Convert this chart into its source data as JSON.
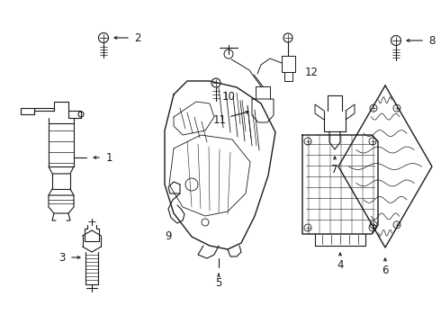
{
  "background_color": "#ffffff",
  "line_color": "#1a1a1a",
  "fig_width": 4.9,
  "fig_height": 3.6,
  "dpi": 100,
  "lw": 0.8
}
